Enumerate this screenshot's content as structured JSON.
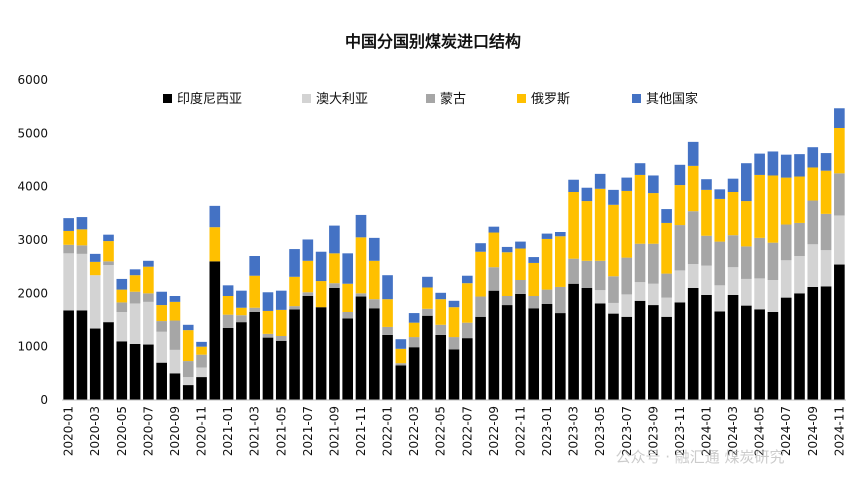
{
  "chart_data": {
    "type": "bar",
    "stacked": true,
    "title": "中国分国别煤炭进口结构",
    "xlabel": "",
    "ylabel": "",
    "ylim": [
      0,
      6000
    ],
    "yticks": [
      0,
      1000,
      2000,
      3000,
      4000,
      5000,
      6000
    ],
    "legend_position": "top",
    "categories": [
      "2020-01",
      "2020-02",
      "2020-03",
      "2020-04",
      "2020-05",
      "2020-06",
      "2020-07",
      "2020-08",
      "2020-09",
      "2020-10",
      "2020-11",
      "2020-12",
      "2021-01",
      "2021-02",
      "2021-03",
      "2021-04",
      "2021-05",
      "2021-06",
      "2021-07",
      "2021-08",
      "2021-09",
      "2021-10",
      "2021-11",
      "2021-12",
      "2022-01",
      "2022-02",
      "2022-03",
      "2022-04",
      "2022-05",
      "2022-06",
      "2022-07",
      "2022-08",
      "2022-09",
      "2022-10",
      "2022-11",
      "2022-12",
      "2023-01",
      "2023-02",
      "2023-03",
      "2023-04",
      "2023-05",
      "2023-06",
      "2023-07",
      "2023-08",
      "2023-09",
      "2023-10",
      "2023-11",
      "2023-12",
      "2024-01",
      "2024-02",
      "2024-03",
      "2024-04",
      "2024-05",
      "2024-06",
      "2024-07",
      "2024-08",
      "2024-09",
      "2024-10",
      "2024-11"
    ],
    "x_tick_labels": [
      "2020-01",
      "2020-03",
      "2020-05",
      "2020-07",
      "2020-09",
      "2020-11",
      "2021-01",
      "2021-03",
      "2021-05",
      "2021-07",
      "2021-09",
      "2021-11",
      "2022-01",
      "2022-03",
      "2022-05",
      "2022-07",
      "2022-09",
      "2022-11",
      "2023-01",
      "2023-03",
      "2023-05",
      "2023-07",
      "2023-09",
      "2023-11",
      "2024-01",
      "2024-03",
      "2024-05",
      "2024-07",
      "2024-09",
      "2024-11"
    ],
    "series": [
      {
        "name": "印度尼西亚",
        "color": "#000000",
        "values": [
          1680,
          1680,
          1340,
          1460,
          1100,
          1050,
          1040,
          700,
          500,
          280,
          430,
          2600,
          1350,
          1460,
          1650,
          1170,
          1110,
          1700,
          1950,
          1740,
          2100,
          1530,
          1940,
          1720,
          1220,
          650,
          990,
          1580,
          1220,
          950,
          1160,
          1560,
          2050,
          1780,
          1990,
          1720,
          1800,
          1630,
          2180,
          2100,
          1810,
          1620,
          1560,
          1860,
          1780,
          1560,
          1830,
          2100,
          1970,
          1660,
          1970,
          1770,
          1700,
          1650,
          1920,
          2000,
          2120,
          2130,
          2540
        ]
      },
      {
        "name": "澳大利亚",
        "color": "#d3d3d3",
        "values": [
          1070,
          1060,
          1000,
          1070,
          550,
          760,
          800,
          580,
          440,
          150,
          180,
          0,
          0,
          0,
          0,
          0,
          0,
          0,
          0,
          0,
          0,
          0,
          0,
          0,
          0,
          0,
          0,
          0,
          0,
          0,
          0,
          0,
          0,
          0,
          0,
          0,
          0,
          0,
          0,
          0,
          250,
          200,
          420,
          350,
          400,
          360,
          600,
          450,
          550,
          490,
          520,
          500,
          580,
          600,
          700,
          700,
          800,
          680,
          920
        ]
      },
      {
        "name": "蒙古",
        "color": "#a6a6a6",
        "values": [
          160,
          160,
          0,
          70,
          180,
          220,
          160,
          200,
          550,
          300,
          240,
          0,
          250,
          130,
          80,
          70,
          90,
          60,
          70,
          0,
          90,
          120,
          60,
          170,
          150,
          40,
          190,
          130,
          190,
          230,
          290,
          380,
          440,
          170,
          260,
          230,
          270,
          490,
          470,
          510,
          550,
          500,
          690,
          720,
          750,
          450,
          850,
          990,
          560,
          820,
          600,
          610,
          760,
          700,
          670,
          620,
          820,
          680,
          790
        ]
      },
      {
        "name": "俄罗斯",
        "color": "#ffc000",
        "values": [
          260,
          300,
          250,
          380,
          240,
          310,
          500,
          300,
          350,
          580,
          150,
          640,
          350,
          140,
          600,
          430,
          490,
          550,
          590,
          490,
          560,
          530,
          1050,
          720,
          520,
          270,
          270,
          400,
          480,
          560,
          740,
          840,
          650,
          820,
          590,
          620,
          950,
          950,
          1250,
          1120,
          1350,
          1340,
          1250,
          1290,
          950,
          950,
          750,
          850,
          860,
          800,
          810,
          850,
          1180,
          1260,
          880,
          870,
          620,
          810,
          850
        ]
      },
      {
        "name": "其他国家",
        "color": "#4472c4",
        "values": [
          240,
          230,
          150,
          120,
          200,
          110,
          110,
          250,
          110,
          100,
          90,
          400,
          200,
          320,
          370,
          350,
          360,
          520,
          400,
          550,
          520,
          570,
          420,
          430,
          450,
          180,
          180,
          200,
          120,
          120,
          140,
          160,
          110,
          100,
          130,
          110,
          100,
          80,
          230,
          250,
          280,
          280,
          250,
          220,
          330,
          260,
          380,
          450,
          200,
          180,
          250,
          710,
          400,
          450,
          430,
          420,
          380,
          330,
          370
        ]
      }
    ],
    "watermark": "公众号 · 融汇通 煤炭研究"
  }
}
